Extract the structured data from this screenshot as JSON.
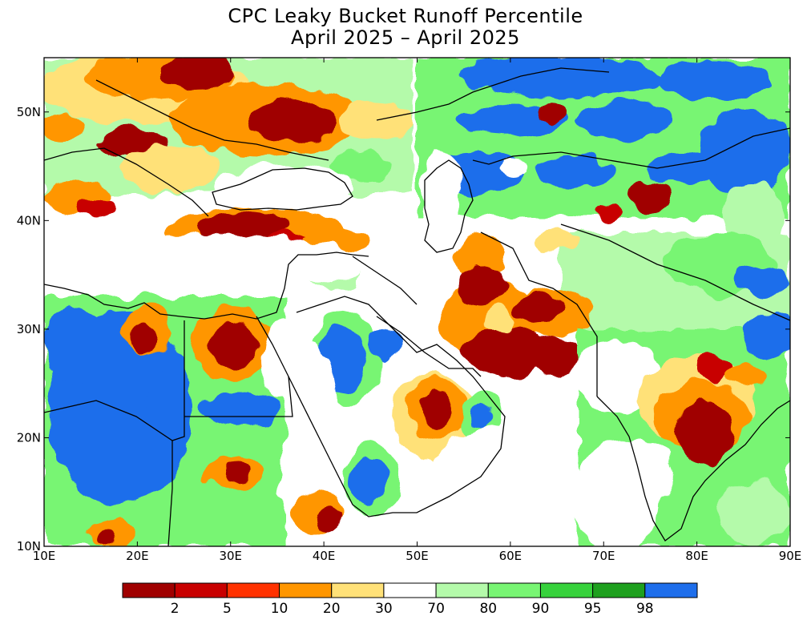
{
  "title": {
    "line1": "CPC Leaky Bucket Runoff Percentile",
    "line2": "April 2025 – April 2025"
  },
  "map": {
    "lon_range": [
      10,
      90
    ],
    "lat_range": [
      10,
      55
    ],
    "x_ticks": [
      "10E",
      "20E",
      "30E",
      "40E",
      "50E",
      "60E",
      "70E",
      "80E",
      "90E"
    ],
    "y_ticks": [
      "10N",
      "20N",
      "30N",
      "40N",
      "50N"
    ],
    "x_tick_values": [
      10,
      20,
      30,
      40,
      50,
      60,
      70,
      80,
      90
    ],
    "y_tick_values": [
      10,
      20,
      30,
      40,
      50
    ]
  },
  "legend": {
    "colors": [
      "#a00000",
      "#c80000",
      "#ff3200",
      "#ff9600",
      "#ffe178",
      "#ffffff",
      "#b4faaa",
      "#78f573",
      "#37d23c",
      "#1ea01e",
      "#1e6eeb"
    ],
    "labels": [
      "2",
      "5",
      "10",
      "20",
      "30",
      "70",
      "80",
      "90",
      "95",
      "98"
    ]
  }
}
